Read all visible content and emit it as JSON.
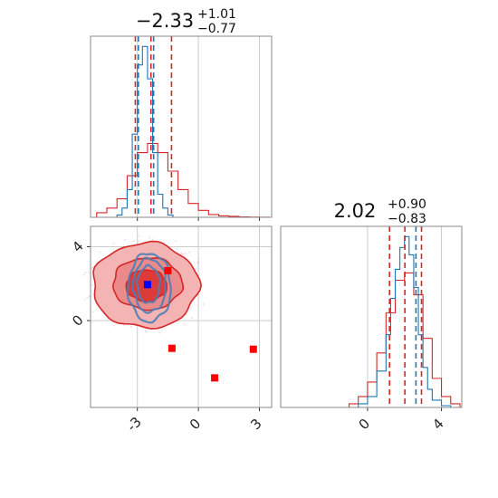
{
  "colors": {
    "red": "#d62728",
    "blue": "#1f77b4",
    "grid": "#cccccc",
    "frame": "#888888",
    "contour_fill_1": "#f4b4b4",
    "contour_fill_2": "#ea8a8a",
    "contour_fill_3": "#dd3a3a",
    "scatter_red": "#ff0000",
    "scatter_blue": "#0000ff"
  },
  "chart_data": [
    {
      "type": "histogram",
      "panel": "top-left",
      "title": {
        "value": "−2.33",
        "plus": "+1.01",
        "minus": "−0.77"
      },
      "xlim": [
        -5.3,
        3.6
      ],
      "xticks": [
        -3,
        0,
        3
      ],
      "grid": true,
      "series": [
        {
          "color": "#d62728",
          "bin_edges": [
            -5.0,
            -4.5,
            -4.0,
            -3.5,
            -3.0,
            -2.5,
            -2.0,
            -1.5,
            -1.0,
            -0.5,
            0.0,
            0.5,
            1.0,
            1.5,
            2.0,
            2.5,
            3.0,
            3.5
          ],
          "counts": [
            1,
            2,
            4,
            9,
            14,
            16,
            14,
            10,
            6,
            3,
            1.5,
            0.6,
            0.3,
            0.2,
            0.1,
            0.05,
            0.02
          ]
        },
        {
          "color": "#1f77b4",
          "bin_edges": [
            -4.0,
            -3.75,
            -3.5,
            -3.25,
            -3.0,
            -2.75,
            -2.5,
            -2.25,
            -2.0,
            -1.75,
            -1.5,
            -1.25
          ],
          "counts": [
            0.5,
            2,
            6,
            18,
            33,
            37,
            30,
            14,
            5,
            2,
            0.5
          ]
        }
      ],
      "vlines": [
        {
          "x": -3.1,
          "color": "#d62728",
          "style": "dashed"
        },
        {
          "x": -2.33,
          "color": "#d62728",
          "style": "dashed"
        },
        {
          "x": -1.32,
          "color": "#d62728",
          "style": "dashed"
        },
        {
          "x": -2.95,
          "color": "#1f77b4",
          "style": "dashed"
        },
        {
          "x": -2.2,
          "color": "#1f77b4",
          "style": "dashed"
        }
      ]
    },
    {
      "type": "contour-scatter",
      "panel": "bottom-left",
      "xlim": [
        -5.3,
        3.6
      ],
      "ylim": [
        -4.7,
        5.1
      ],
      "xticks": [
        -3,
        0,
        3
      ],
      "yticks": [
        0,
        4
      ],
      "grid": true,
      "red_contours": [
        {
          "level": "outer",
          "center": [
            -2.6,
            1.9
          ],
          "rx": 2.6,
          "ry": 2.3
        },
        {
          "level": "middle",
          "center": [
            -2.5,
            2.0
          ],
          "rx": 1.7,
          "ry": 1.4
        },
        {
          "level": "inner",
          "center": [
            -2.55,
            1.9
          ],
          "rx": 1.0,
          "ry": 0.85
        }
      ],
      "blue_contours": [
        {
          "center": [
            -2.4,
            1.8
          ],
          "rx": 1.05,
          "ry": 1.85
        },
        {
          "center": [
            -2.4,
            1.9
          ],
          "rx": 0.8,
          "ry": 1.45
        },
        {
          "center": [
            -2.45,
            1.95
          ],
          "rx": 0.55,
          "ry": 1.0
        }
      ],
      "points": [
        {
          "x": -1.5,
          "y": 2.7,
          "color": "#ff0000"
        },
        {
          "x": -1.3,
          "y": -1.5,
          "color": "#ff0000"
        },
        {
          "x": 0.8,
          "y": -3.1,
          "color": "#ff0000"
        },
        {
          "x": 2.7,
          "y": -1.55,
          "color": "#ff0000"
        },
        {
          "x": -2.5,
          "y": 1.95,
          "color": "#0000ff"
        }
      ]
    },
    {
      "type": "histogram",
      "panel": "bottom-right",
      "title": {
        "value": "2.02",
        "plus": "+0.90",
        "minus": "−0.83"
      },
      "xlim": [
        -4.7,
        5.1
      ],
      "xticks": [
        0,
        4
      ],
      "grid": true,
      "series": [
        {
          "color": "#d62728",
          "bin_edges": [
            -1.0,
            -0.5,
            0.0,
            0.5,
            1.0,
            1.5,
            2.0,
            2.5,
            3.0,
            3.5,
            4.0,
            4.5,
            5.0
          ],
          "counts": [
            1,
            3,
            7,
            15,
            26,
            35,
            37,
            31,
            19,
            8,
            3,
            1
          ]
        },
        {
          "color": "#1f77b4",
          "bin_edges": [
            -0.5,
            0.0,
            0.5,
            1.0,
            1.25,
            1.5,
            1.75,
            2.0,
            2.25,
            2.5,
            2.75,
            3.0,
            3.25,
            3.5,
            4.0,
            4.5
          ],
          "counts": [
            1,
            3,
            10,
            20,
            30,
            38,
            44,
            47,
            42,
            33,
            20,
            11,
            5,
            2,
            0.5
          ]
        }
      ],
      "vlines": [
        {
          "x": 1.19,
          "color": "#d62728",
          "style": "dashed"
        },
        {
          "x": 2.02,
          "color": "#d62728",
          "style": "dashed"
        },
        {
          "x": 2.92,
          "color": "#d62728",
          "style": "dashed"
        },
        {
          "x": 2.62,
          "color": "#1f77b4",
          "style": "dashed"
        }
      ]
    }
  ]
}
